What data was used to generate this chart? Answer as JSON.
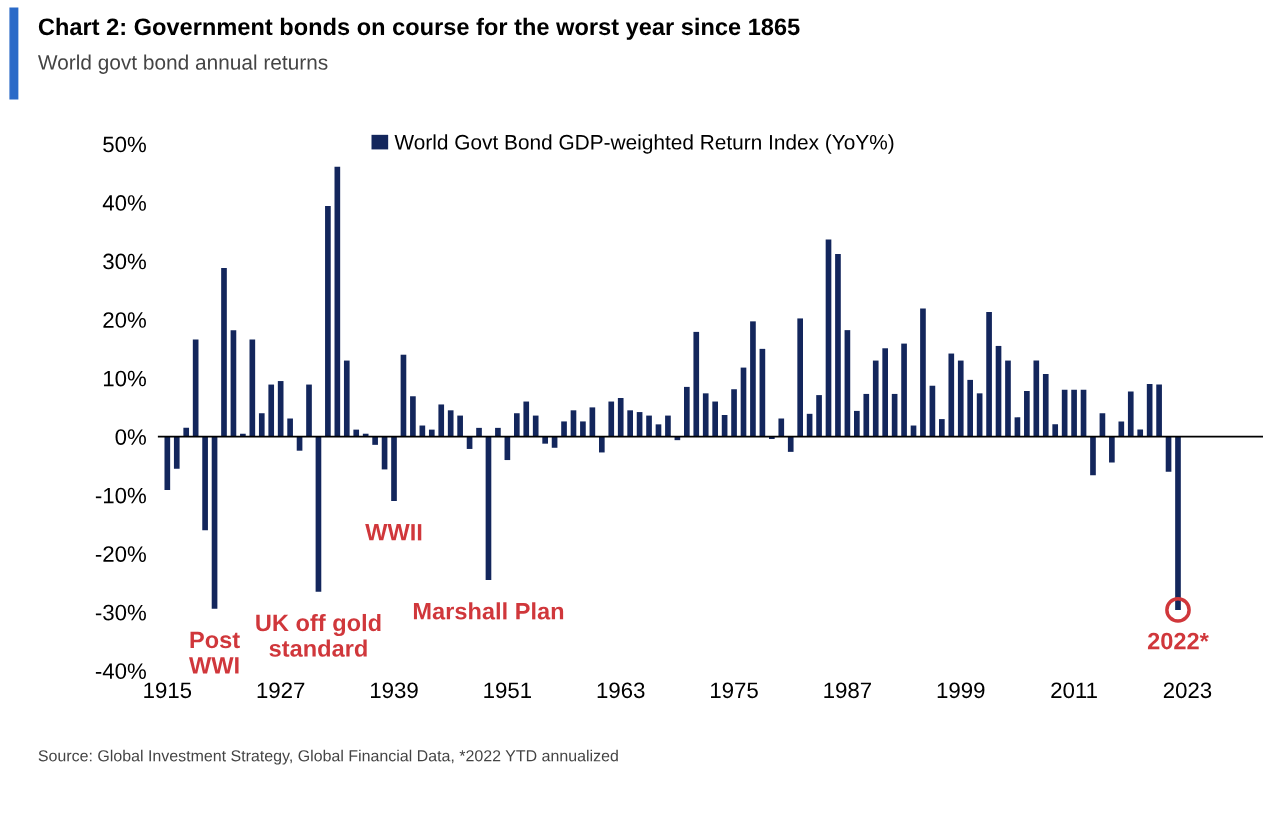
{
  "chart_data": {
    "type": "bar",
    "title": "Chart 2: Government bonds on course for the worst year since 1865",
    "subtitle": "World govt bond annual returns",
    "x": [
      1915,
      1916,
      1917,
      1918,
      1919,
      1920,
      1921,
      1922,
      1923,
      1924,
      1925,
      1926,
      1927,
      1928,
      1929,
      1930,
      1931,
      1932,
      1933,
      1934,
      1935,
      1936,
      1937,
      1938,
      1939,
      1940,
      1941,
      1942,
      1943,
      1944,
      1945,
      1946,
      1947,
      1948,
      1949,
      1950,
      1951,
      1952,
      1953,
      1954,
      1955,
      1956,
      1957,
      1958,
      1959,
      1960,
      1961,
      1962,
      1963,
      1964,
      1965,
      1966,
      1967,
      1968,
      1969,
      1970,
      1971,
      1972,
      1973,
      1974,
      1975,
      1976,
      1977,
      1978,
      1979,
      1980,
      1981,
      1982,
      1983,
      1984,
      1985,
      1986,
      1987,
      1988,
      1989,
      1990,
      1991,
      1992,
      1993,
      1994,
      1995,
      1996,
      1997,
      1998,
      1999,
      2000,
      2001,
      2002,
      2003,
      2004,
      2005,
      2006,
      2007,
      2008,
      2009,
      2010,
      2011,
      2012,
      2013,
      2014,
      2015,
      2016,
      2017,
      2018,
      2019,
      2020,
      2021,
      2022
    ],
    "series": [
      {
        "name": "World Govt Bond GDP-weighted Return Index (YoY%)",
        "color": "#13265c",
        "values": [
          -9.1,
          -5.5,
          1.5,
          16.6,
          -16,
          -29.4,
          28.8,
          18.2,
          0.5,
          16.6,
          4.0,
          8.9,
          9.5,
          3.1,
          -2.4,
          8.9,
          -26.5,
          39.4,
          46.1,
          13.0,
          1.2,
          0.5,
          -1.4,
          -5.6,
          -11,
          14,
          6.9,
          1.9,
          1.2,
          5.5,
          4.5,
          3.6,
          -2.1,
          1.5,
          -24.5,
          1.5,
          -4.0,
          4.0,
          6.0,
          3.6,
          -1.2,
          -1.9,
          2.6,
          4.5,
          2.6,
          5.0,
          -2.7,
          6.0,
          6.6,
          4.5,
          4.2,
          3.6,
          2.1,
          3.6,
          -0.6,
          8.5,
          17.9,
          7.4,
          6.0,
          3.7,
          8.1,
          11.8,
          19.7,
          15.0,
          -0.4,
          3.1,
          -2.6,
          20.2,
          3.9,
          7.1,
          33.7,
          31.2,
          18.2,
          4.4,
          7.3,
          13.0,
          15.1,
          7.3,
          15.9,
          1.9,
          21.9,
          8.7,
          3.0,
          14.2,
          13.0,
          9.7,
          7.4,
          21.3,
          15.5,
          13.0,
          3.3,
          7.8,
          13.0,
          10.7,
          2.1,
          8.0,
          8.0,
          8.0,
          -6.6,
          4.0,
          -4.4,
          2.6,
          7.7,
          1.2,
          9.0,
          8.9,
          -6.0,
          -29.6
        ]
      }
    ],
    "xlim": [
      1914,
      2031
    ],
    "xticks": [
      1915,
      1927,
      1939,
      1951,
      1963,
      1975,
      1987,
      1999,
      2011,
      2023
    ],
    "ylim": [
      -40,
      50
    ],
    "yticks": [
      {
        "value": -40,
        "label": "-40%"
      },
      {
        "value": -30,
        "label": "-30%"
      },
      {
        "value": -20,
        "label": "-20%"
      },
      {
        "value": -10,
        "label": "-10%"
      },
      {
        "value": 0,
        "label": "0%"
      },
      {
        "value": 10,
        "label": "10%"
      },
      {
        "value": 20,
        "label": "20%"
      },
      {
        "value": 30,
        "label": "30%"
      },
      {
        "value": 40,
        "label": "40%"
      },
      {
        "value": 50,
        "label": "50%"
      }
    ],
    "ref_lines": [
      {
        "axis": "y",
        "value": 0,
        "color": "#000000"
      }
    ],
    "grid": false,
    "legend": "top",
    "annotations": [
      {
        "text": "Post\nWWI",
        "x": 1920,
        "y": -29.4
      },
      {
        "text": "UK off gold\nstandard",
        "x": 1931,
        "y": -26.5
      },
      {
        "text": "WWII",
        "x": 1939,
        "y": -11
      },
      {
        "text": "Marshall Plan",
        "x": 1949,
        "y": -24.5
      },
      {
        "text": "2022*",
        "x": 2022,
        "y": -29.6
      },
      "Source: Global Investment Strategy, Global Financial Data, *2022 YTD annualized"
    ]
  }
}
